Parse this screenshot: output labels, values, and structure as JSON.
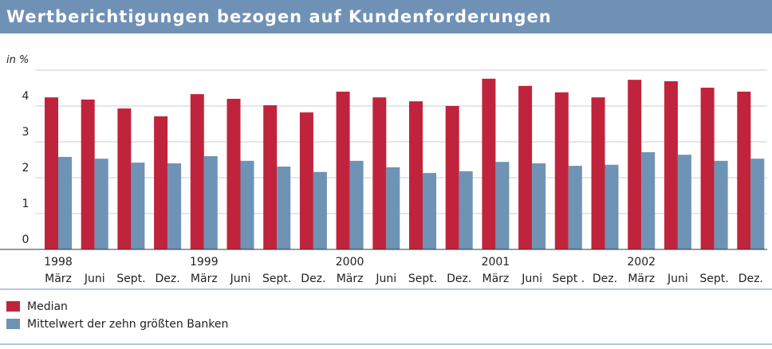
{
  "chart_data": {
    "type": "bar",
    "title": "Wertberichtigungen bezogen auf Kundenforderungen",
    "y_unit": "in %",
    "categories": [
      "März",
      "Juni",
      "Sept.",
      "Dez.",
      "März",
      "Juni",
      "Sept.",
      "Dez.",
      "März",
      "Juni",
      "Sept.",
      "Dez.",
      "März",
      "Juni",
      "Sept .",
      "Dez.",
      "März",
      "Juni",
      "Sept.",
      "Dez."
    ],
    "years": [
      "1998",
      null,
      null,
      null,
      "1999",
      null,
      null,
      null,
      "2000",
      null,
      null,
      null,
      "2001",
      null,
      null,
      null,
      "2002",
      null,
      null,
      null
    ],
    "series": [
      {
        "name": "Median",
        "color": "#c0243c",
        "values": [
          4.24,
          4.18,
          3.93,
          3.71,
          4.33,
          4.2,
          4.02,
          3.82,
          4.4,
          4.24,
          4.13,
          4.0,
          4.76,
          4.56,
          4.38,
          4.24,
          4.73,
          4.69,
          4.51,
          4.4
        ]
      },
      {
        "name": "Mittelwert der zehn größten Banken",
        "color": "#6e93b5",
        "values": [
          2.58,
          2.53,
          2.42,
          2.4,
          2.6,
          2.47,
          2.31,
          2.16,
          2.47,
          2.29,
          2.13,
          2.18,
          2.44,
          2.4,
          2.33,
          2.36,
          2.71,
          2.64,
          2.47,
          2.53
        ]
      }
    ],
    "ylim": [
      0,
      5
    ],
    "yticks": [
      0,
      1,
      2,
      3,
      4
    ],
    "gridlines": [
      0,
      1,
      2,
      3,
      4,
      5
    ],
    "grid": true
  }
}
